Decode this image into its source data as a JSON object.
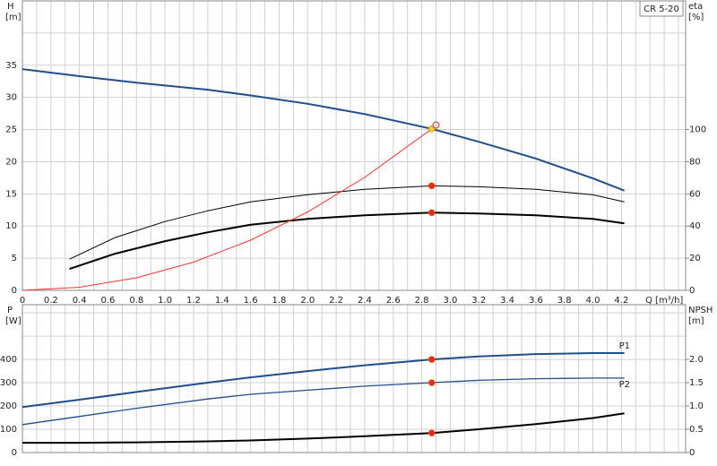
{
  "chart_data": [
    {
      "type": "line",
      "annotation": "CR 5-20",
      "ylabel": "H",
      "yunit": "[m]",
      "y2label": "eta",
      "y2unit": "[%]",
      "xlabel": "Q [m³/h]",
      "xlim": [
        0,
        4.65
      ],
      "ylim": [
        0,
        45
      ],
      "y2lim": [
        0,
        180
      ],
      "grid": true,
      "xticks": [
        0,
        0.2,
        0.4,
        0.6,
        0.8,
        {
          "value": 1,
          "label": "1.0"
        },
        1.2,
        1.4,
        1.6,
        1.8,
        {
          "value": 2,
          "label": "2.0"
        },
        2.2,
        2.4,
        2.6,
        2.8,
        {
          "value": 3,
          "label": "3.0"
        },
        3.2,
        3.4,
        3.6,
        3.8,
        {
          "value": 4,
          "label": "4.0"
        },
        4.2
      ],
      "xminor": [
        0.1,
        0.3,
        0.5,
        0.7,
        0.9,
        1.1,
        1.3,
        1.5,
        1.7,
        1.9,
        2.1,
        2.3,
        2.5,
        2.7,
        2.9,
        3.1,
        3.3,
        3.5,
        3.7,
        3.9,
        4.1,
        4.3,
        4.4,
        4.5,
        4.6
      ],
      "yticks": [
        0,
        5,
        10,
        15,
        20,
        25,
        30,
        35
      ],
      "yminor": [
        40
      ],
      "y2ticks": [
        0,
        20,
        40,
        60,
        80,
        100
      ],
      "series": [
        {
          "color": "#1f4e8c",
          "width": 2,
          "x": [
            0,
            0.4,
            0.8,
            1.3,
            1.6,
            2.0,
            2.4,
            2.87,
            3.2,
            3.6,
            4.0,
            4.22
          ],
          "values": [
            34.4,
            33.3,
            32.3,
            31.2,
            30.3,
            29.0,
            27.4,
            25.1,
            23.1,
            20.5,
            17.4,
            15.5
          ]
        },
        {
          "color": "#000000",
          "width": 1,
          "axis": "y2",
          "x": [
            0.33,
            0.65,
            1.0,
            1.3,
            1.6,
            2.0,
            2.4,
            2.87,
            3.2,
            3.6,
            4.0,
            4.22
          ],
          "values": [
            19.4,
            32.8,
            42.8,
            49.5,
            55,
            59.5,
            62.8,
            65,
            64.4,
            62.8,
            59.4,
            55
          ]
        },
        {
          "color": "#000000",
          "width": 2,
          "axis": "y2",
          "x": [
            0.33,
            0.65,
            1.0,
            1.3,
            1.6,
            2.0,
            2.4,
            2.87,
            3.2,
            3.6,
            4.0,
            4.22
          ],
          "values": [
            13.3,
            22.8,
            30.6,
            36.1,
            40.8,
            44.4,
            46.7,
            48.3,
            47.8,
            46.7,
            44.4,
            41.7
          ]
        },
        {
          "color": "#ff3030",
          "width": 1,
          "x": [
            0,
            0.4,
            0.8,
            1.2,
            1.6,
            2.0,
            2.4,
            2.87
          ],
          "values": [
            0,
            0.49,
            1.95,
            4.39,
            7.8,
            12.19,
            17.55,
            25.1
          ]
        },
        {
          "style": "points",
          "color": "#ff2020",
          "axis": "y2",
          "x": [
            2.87,
            2.87
          ],
          "values": [
            65,
            48.3
          ]
        },
        {
          "style": "points",
          "color": "#ffd21f",
          "x": [
            2.87
          ],
          "values": [
            25.1
          ]
        },
        {
          "style": "points",
          "color": "#ff2020",
          "hollow": true,
          "x": [
            2.9
          ],
          "values": [
            25.7
          ]
        }
      ]
    },
    {
      "type": "line",
      "ylabel": "P",
      "yunit": "[W]",
      "y2label": "NPSH",
      "y2unit": "[m]",
      "xlim": [
        0,
        4.65
      ],
      "ylim": [
        0,
        635
      ],
      "y2lim": [
        0,
        3.175
      ],
      "grid": true,
      "xminor": [
        0,
        0.1,
        0.2,
        0.3,
        0.4,
        0.5,
        0.6,
        0.7,
        0.8,
        0.9,
        1.0,
        1.1,
        1.2,
        1.3,
        1.4,
        1.5,
        1.6,
        1.7,
        1.8,
        1.9,
        2.0,
        2.1,
        2.2,
        2.3,
        2.4,
        2.5,
        2.6,
        2.7,
        2.8,
        2.9,
        3.0,
        3.1,
        3.2,
        3.3,
        3.4,
        3.5,
        3.6,
        3.7,
        3.8,
        3.9,
        4.0,
        4.1,
        4.2,
        4.3,
        4.4,
        4.5,
        4.6
      ],
      "yticks": [
        0,
        100,
        200,
        300,
        400
      ],
      "yminor": [
        500,
        600
      ],
      "y2ticks": [
        0,
        0.5,
        {
          "value": 1,
          "label": "1.0"
        },
        1.5,
        {
          "value": 2,
          "label": "2.0"
        }
      ],
      "series": [
        {
          "name": "P1",
          "color": "#1f4e8c",
          "width": 2,
          "x": [
            0,
            0.4,
            0.8,
            1.3,
            1.6,
            2.0,
            2.4,
            2.87,
            3.2,
            3.6,
            4.0,
            4.22
          ],
          "values": [
            195,
            227,
            260,
            300,
            323,
            350,
            375,
            400,
            413,
            423,
            427,
            427
          ]
        },
        {
          "name": "P2",
          "color": "#1f4e8c",
          "width": 1.3,
          "x": [
            0,
            0.4,
            0.8,
            1.3,
            1.6,
            2.0,
            2.4,
            2.87,
            3.2,
            3.6,
            4.0,
            4.22
          ],
          "values": [
            120,
            155,
            190,
            230,
            250,
            268,
            285,
            300,
            310,
            317,
            320,
            320
          ]
        },
        {
          "color": "#000000",
          "width": 2,
          "axis": "y2",
          "x": [
            0,
            0.4,
            0.8,
            1.3,
            1.6,
            2.0,
            2.4,
            2.87,
            3.2,
            3.6,
            4.0,
            4.22
          ],
          "values": [
            0.21,
            0.21,
            0.22,
            0.24,
            0.26,
            0.3,
            0.35,
            0.42,
            0.5,
            0.61,
            0.74,
            0.84
          ]
        },
        {
          "style": "points",
          "color": "#ff2020",
          "x": [
            2.87,
            2.87
          ],
          "values": [
            400,
            300
          ]
        },
        {
          "style": "points",
          "color": "#ff2020",
          "axis": "y2",
          "x": [
            2.87
          ],
          "values": [
            0.42
          ]
        }
      ]
    }
  ]
}
